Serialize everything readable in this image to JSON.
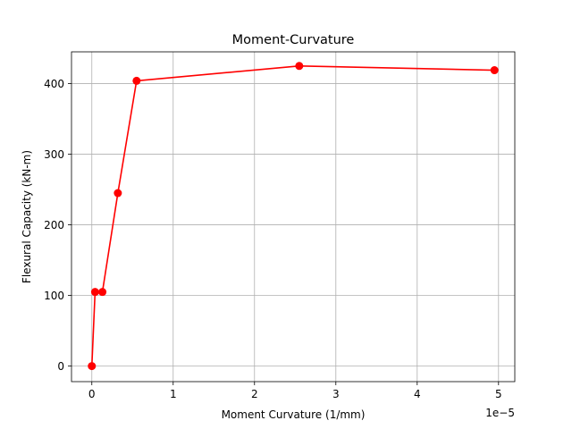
{
  "chart_data": {
    "type": "line",
    "title": "Moment-Curvature",
    "xlabel": "Moment Curvature (1/mm)",
    "ylabel": "Flexural Capacity (kN-m)",
    "x_offset_label": "1e−5",
    "x_scale": 1e-05,
    "xlim": [
      -0.25,
      5.2
    ],
    "ylim": [
      -22,
      445
    ],
    "x_ticks": [
      0,
      1,
      2,
      3,
      4,
      5
    ],
    "y_ticks": [
      0,
      100,
      200,
      300,
      400
    ],
    "grid": true,
    "color": "#ff0000",
    "marker": "circle",
    "series": [
      {
        "x": [
          0,
          0.04,
          0.13,
          0.32,
          0.55,
          2.55,
          4.95
        ],
        "y": [
          0,
          105,
          105,
          245,
          404,
          425,
          419
        ]
      }
    ]
  }
}
